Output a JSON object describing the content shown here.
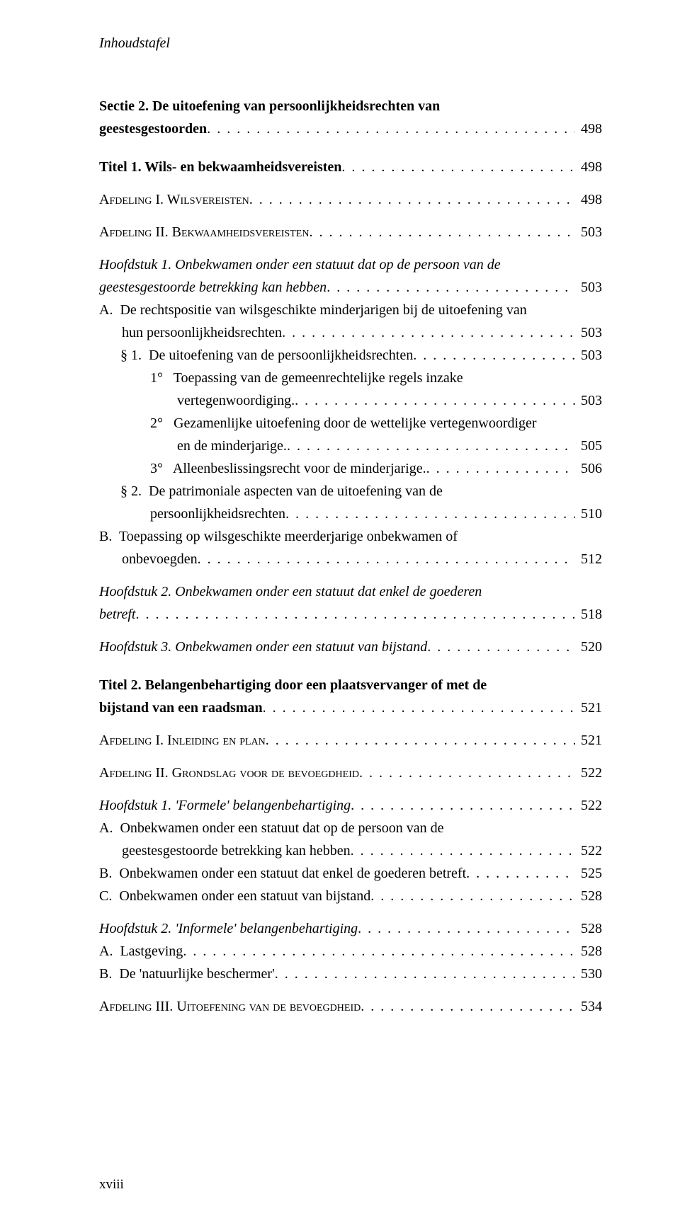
{
  "runningHead": "Inhoudstafel",
  "entries": [
    {
      "kind": "section-bold",
      "lineA": "Sectie 2. De uitoefening van persoonlijkheidsrechten van",
      "lineB": "geestesgestoorden",
      "page": "498"
    },
    {
      "kind": "section-bold",
      "lineA": "Titel 1. Wils- en bekwaamheidsvereisten",
      "page": "498"
    },
    {
      "kind": "afdeling",
      "prefix": "Afdeling I. ",
      "rest": "Wilsvereisten",
      "page": "498"
    },
    {
      "kind": "afdeling",
      "prefix": "Afdeling II. ",
      "rest": "Bekwaamheidsvereisten",
      "page": "503"
    },
    {
      "kind": "hoofdstuk",
      "lineA": "Hoofdstuk 1. Onbekwamen onder een statuut dat op de persoon van de",
      "lineB": "geestesgestoorde betrekking kan hebben",
      "page": "503"
    },
    {
      "kind": "letter",
      "lineA": "A.  De rechtspositie van wilsgeschikte minderjarigen bij de uitoefening van",
      "lineB": "hun persoonlijkheidsrechten",
      "page": "503"
    },
    {
      "kind": "para",
      "lineA": "§ 1.  De uitoefening van de persoonlijkheidsrechten",
      "page": "503"
    },
    {
      "kind": "num",
      "lineA": "1°   Toepassing van de gemeenrechtelijke regels inzake",
      "lineB": "vertegenwoordiging.",
      "page": "503"
    },
    {
      "kind": "num",
      "lineA": "2°   Gezamenlijke uitoefening door de wettelijke vertegenwoordiger",
      "lineB": "en de minderjarige.",
      "page": "505"
    },
    {
      "kind": "num",
      "lineA": "3°   Alleenbeslissingsrecht voor de minderjarige.",
      "page": "506"
    },
    {
      "kind": "para",
      "lineA": "§ 2.  De patrimoniale aspecten van de uitoefening van de",
      "lineB": "persoonlijkheidsrechten",
      "page": "510"
    },
    {
      "kind": "letter",
      "lineA": "B.  Toepassing op wilsgeschikte meerderjarige onbekwamen of",
      "lineB": "onbevoegden",
      "page": "512"
    },
    {
      "kind": "hoofdstuk",
      "lineA": "Hoofdstuk 2. Onbekwamen onder een statuut dat enkel de goederen",
      "lineB": "betreft",
      "page": "518"
    },
    {
      "kind": "hoofdstuk",
      "lineA": "Hoofdstuk 3. Onbekwamen onder een statuut van bijstand",
      "page": "520"
    },
    {
      "kind": "section-bold",
      "lineA": "Titel 2. Belangenbehartiging door een plaatsvervanger of met de",
      "lineB": "bijstand van een raadsman",
      "page": "521"
    },
    {
      "kind": "afdeling",
      "prefix": "Afdeling I. ",
      "rest": "Inleiding en plan",
      "page": "521"
    },
    {
      "kind": "afdeling",
      "prefix": "Afdeling II. ",
      "rest": "Grondslag voor de bevoegdheid",
      "page": "522"
    },
    {
      "kind": "hoofdstuk",
      "lineA": "Hoofdstuk 1. 'Formele' belangenbehartiging",
      "page": "522"
    },
    {
      "kind": "letter",
      "lineA": "A.  Onbekwamen onder een statuut dat op de persoon van de",
      "lineB": "geestesgestoorde betrekking kan hebben",
      "page": "522"
    },
    {
      "kind": "letter",
      "lineA": "B.  Onbekwamen onder een statuut dat enkel de goederen betreft",
      "page": "525"
    },
    {
      "kind": "letter",
      "lineA": "C.  Onbekwamen onder een statuut van bijstand",
      "page": "528"
    },
    {
      "kind": "hoofdstuk",
      "lineA": "Hoofdstuk 2. 'Informele' belangenbehartiging",
      "page": "528"
    },
    {
      "kind": "letter",
      "lineA": "A.  Lastgeving",
      "page": "528"
    },
    {
      "kind": "letter",
      "lineA": "B.  De 'natuurlijke beschermer'",
      "page": "530"
    },
    {
      "kind": "afdeling",
      "prefix": "Afdeling III. ",
      "rest": "Uitoefening van de bevoegdheid",
      "page": "534"
    }
  ],
  "footer": "xviii"
}
